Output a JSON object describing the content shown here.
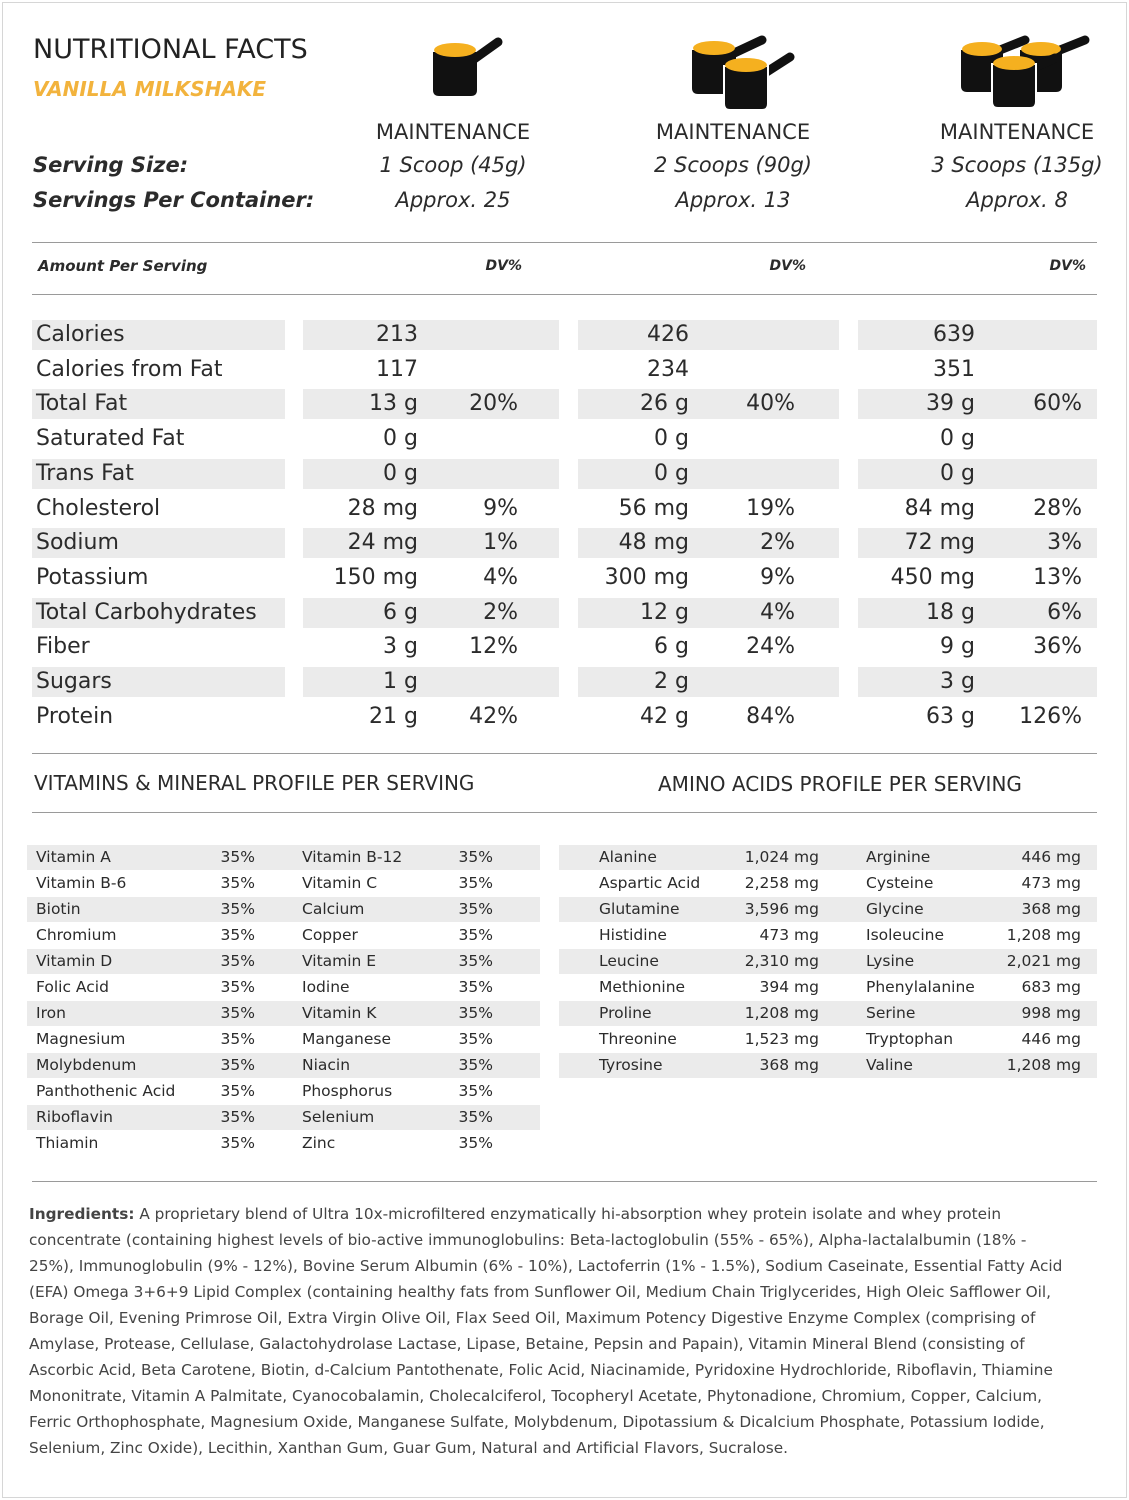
{
  "header": {
    "title": "NUTRITIONAL FACTS",
    "subtitle": "VANILLA MILKSHAKE"
  },
  "serving": {
    "size_label": "Serving Size:",
    "per_container_label": "Servings Per Container:",
    "columns": [
      {
        "plan": "MAINTENANCE",
        "size": "1 Scoop (45g)",
        "per_container": "Approx. 25"
      },
      {
        "plan": "MAINTENANCE",
        "size": "2 Scoops (90g)",
        "per_container": "Approx. 13"
      },
      {
        "plan": "MAINTENANCE",
        "size": "3 Scoops (135g)",
        "per_container": "Approx. 8"
      }
    ]
  },
  "nutrients": {
    "amount_label": "Amount Per Serving",
    "dv_label": "DV%",
    "rows": [
      {
        "name": "Calories",
        "amounts": [
          "213",
          "426",
          "639"
        ]
      },
      {
        "name": "Calories from Fat",
        "amounts": [
          "117",
          "234",
          "351"
        ]
      },
      {
        "name": "Total Fat",
        "amounts": [
          "13 g",
          "26 g",
          "39 g"
        ],
        "dv": [
          "20%",
          "40%",
          "60%"
        ]
      },
      {
        "name": "Saturated Fat",
        "amounts": [
          "0 g",
          "0 g",
          "0 g"
        ]
      },
      {
        "name": "Trans Fat",
        "amounts": [
          "0 g",
          "0 g",
          "0 g"
        ]
      },
      {
        "name": "Cholesterol",
        "amounts": [
          "28 mg",
          "56 mg",
          "84 mg"
        ],
        "dv": [
          "9%",
          "19%",
          "28%"
        ]
      },
      {
        "name": "Sodium",
        "amounts": [
          "24 mg",
          "48 mg",
          "72 mg"
        ],
        "dv": [
          "1%",
          "2%",
          "3%"
        ]
      },
      {
        "name": "Potassium",
        "amounts": [
          "150 mg",
          "300 mg",
          "450 mg"
        ],
        "dv": [
          "4%",
          "9%",
          "13%"
        ]
      },
      {
        "name": "Total Carbohydrates",
        "amounts": [
          "6 g",
          "12 g",
          "18 g"
        ],
        "dv": [
          "2%",
          "4%",
          "6%"
        ]
      },
      {
        "name": "Fiber",
        "amounts": [
          "3 g",
          "6 g",
          "9 g"
        ],
        "dv": [
          "12%",
          "24%",
          "36%"
        ]
      },
      {
        "name": "Sugars",
        "amounts": [
          "1 g",
          "2 g",
          "3 g"
        ]
      },
      {
        "name": "Protein",
        "amounts": [
          "21 g",
          "42 g",
          "63 g"
        ],
        "dv": [
          "42%",
          "84%",
          "126%"
        ]
      }
    ]
  },
  "vitamins": {
    "title": "VITAMINS & MINERAL PROFILE PER SERVING",
    "rows": [
      [
        "Vitamin A",
        "35%",
        "Vitamin B-12",
        "35%"
      ],
      [
        "Vitamin B-6",
        "35%",
        "Vitamin C",
        "35%"
      ],
      [
        "Biotin",
        "35%",
        "Calcium",
        "35%"
      ],
      [
        "Chromium",
        "35%",
        "Copper",
        "35%"
      ],
      [
        "Vitamin D",
        "35%",
        "Vitamin E",
        "35%"
      ],
      [
        "Folic Acid",
        "35%",
        "Iodine",
        "35%"
      ],
      [
        "Iron",
        "35%",
        "Vitamin K",
        "35%"
      ],
      [
        "Magnesium",
        "35%",
        "Manganese",
        "35%"
      ],
      [
        "Molybdenum",
        "35%",
        "Niacin",
        "35%"
      ],
      [
        "Panthothenic Acid",
        "35%",
        "Phosphorus",
        "35%"
      ],
      [
        "Riboflavin",
        "35%",
        "Selenium",
        "35%"
      ],
      [
        "Thiamin",
        "35%",
        "Zinc",
        "35%"
      ]
    ]
  },
  "amino_acids": {
    "title": "AMINO ACIDS PROFILE PER SERVING",
    "rows": [
      [
        "Alanine",
        "1,024 mg",
        "Arginine",
        "446 mg"
      ],
      [
        "Aspartic Acid",
        "2,258 mg",
        "Cysteine",
        "473 mg"
      ],
      [
        "Glutamine",
        "3,596 mg",
        "Glycine",
        "368 mg"
      ],
      [
        "Histidine",
        "473 mg",
        "Isoleucine",
        "1,208 mg"
      ],
      [
        "Leucine",
        "2,310 mg",
        "Lysine",
        "2,021 mg"
      ],
      [
        "Methionine",
        "394 mg",
        "Phenylalanine",
        "683 mg"
      ],
      [
        "Proline",
        "1,208 mg",
        "Serine",
        "998 mg"
      ],
      [
        "Threonine",
        "1,523 mg",
        "Tryptophan",
        "446 mg"
      ],
      [
        "Tyrosine",
        "368 mg",
        "Valine",
        "1,208 mg"
      ]
    ]
  },
  "ingredients": {
    "label": "Ingredients:",
    "text": "A proprietary blend of Ultra 10x-microfiltered enzymatically hi-absorption whey protein isolate and whey protein concentrate (containing highest levels of bio-active immunoglobulins:  Beta-lactoglobulin (55% - 65%), Alpha-lactalalbumin (18% - 25%), Immunoglobulin (9% - 12%), Bovine Serum Albumin (6% - 10%), Lactoferrin (1% - 1.5%), Sodium Caseinate, Essential Fatty Acid (EFA) Omega 3+6+9 Lipid Complex (containing healthy fats from Sunflower Oil, Medium Chain Triglycerides, High Oleic Safflower Oil, Borage Oil, Evening Primrose Oil, Extra Virgin Olive Oil, Flax Seed Oil, Maximum Potency Digestive Enzyme Complex (comprising of Amylase, Protease, Cellulase, Galactohydrolase Lactase, Lipase, Betaine, Pepsin and Papain), Vitamin Mineral Blend (consisting of Ascorbic Acid, Beta Carotene, Biotin, d-Calcium Pantothenate, Folic Acid, Niacinamide, Pyridoxine Hydrochloride, Riboflavin, Thiamine Mononitrate, Vitamin A Palmitate, Cyanocobalamin, Cholecalciferol, Tocopheryl Acetate, Phytonadione, Chromium, Copper, Calcium, Ferric Orthophosphate, Magnesium Oxide, Manganese Sulfate, Molybdenum, Dipotassium & Dicalcium Phosphate, Potassium Iodide, Selenium, Zinc Oxide), Lecithin, Xanthan Gum, Guar Gum, Natural and Artificial Flavors, Sucralose."
  }
}
